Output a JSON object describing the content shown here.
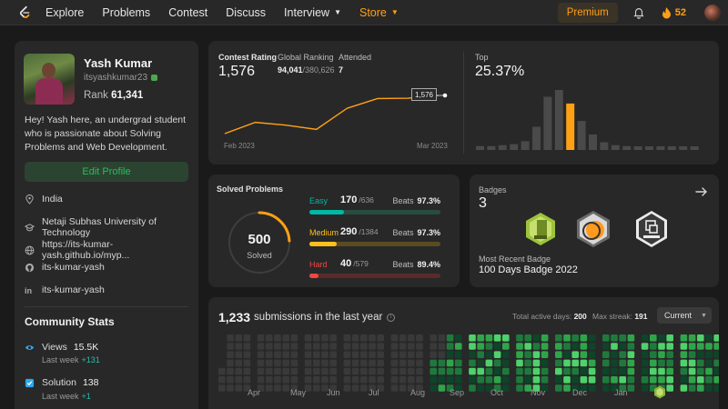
{
  "nav": {
    "items": [
      "Explore",
      "Problems",
      "Contest",
      "Discuss",
      "Interview",
      "Store"
    ],
    "premium": "Premium",
    "streak": "52"
  },
  "profile": {
    "name": "Yash Kumar",
    "username": "itsyashkumar23",
    "rank_label": "Rank",
    "rank_value": "61,341",
    "bio": "Hey! Yash here, an undergrad student who is passionate about Solving Problems and Web Development.",
    "edit_button": "Edit Profile",
    "location": "India",
    "university": "Netaji Subhas University of Technology",
    "website": "https://its-kumar-yash.github.io/myp...",
    "github": "its-kumar-yash",
    "linkedin": "its-kumar-yash"
  },
  "community": {
    "title": "Community Stats",
    "views_label": "Views",
    "views_value": "15.5K",
    "views_sub_label": "Last week",
    "views_delta": "+131",
    "solution_label": "Solution",
    "solution_value": "138",
    "solution_sub_label": "Last week",
    "solution_delta": "+1"
  },
  "contest": {
    "rating_label": "Contest Rating",
    "rating": "1,576",
    "ranking_label": "Global Ranking",
    "ranking_value": "94,041",
    "ranking_total": "/380,626",
    "attended_label": "Attended",
    "attended": "7",
    "date_start": "Feb 2023",
    "date_end": "Mar 2023",
    "tooltip": "1,576",
    "top_label": "Top",
    "top_value": "25.37%",
    "rating_history": [
      1440,
      1480,
      1470,
      1455,
      1530,
      1565,
      1566,
      1576
    ],
    "distribution": [
      4,
      4,
      5,
      6,
      9,
      24,
      55,
      62,
      48,
      30,
      16,
      8,
      5,
      4,
      3,
      3,
      3,
      3,
      3,
      3
    ],
    "highlight_index": 8
  },
  "solved": {
    "title": "Solved Problems",
    "total": "500",
    "total_label": "Solved",
    "easy": {
      "label": "Easy",
      "value": "170",
      "total": "/636",
      "beats_label": "Beats",
      "beats": "97.3%",
      "color": "#00b8a3",
      "track": "#2a4b41",
      "fraction": 0.267
    },
    "medium": {
      "label": "Medium",
      "value": "290",
      "total": "/1384",
      "beats_label": "Beats",
      "beats": "97.3%",
      "color": "#ffc01e",
      "track": "#5a4b23",
      "fraction": 0.21
    },
    "hard": {
      "label": "Hard",
      "value": "40",
      "total": "/579",
      "beats_label": "Beats",
      "beats": "89.4%",
      "color": "#ef4743",
      "track": "#5a2b2a",
      "fraction": 0.069
    }
  },
  "badges": {
    "label": "Badges",
    "count": "3",
    "recent_label": "Most Recent Badge",
    "recent": "100 Days Badge 2022"
  },
  "submissions": {
    "count": "1,233",
    "title": "submissions in the last year",
    "active_label": "Total active days:",
    "active": "200",
    "streak_label": "Max streak:",
    "streak": "191",
    "current": "Current",
    "months": [
      "Apr",
      "May",
      "Jun",
      "Jul",
      "Aug",
      "Sep",
      "Oct",
      "Nov",
      "Dec",
      "Jan"
    ]
  }
}
